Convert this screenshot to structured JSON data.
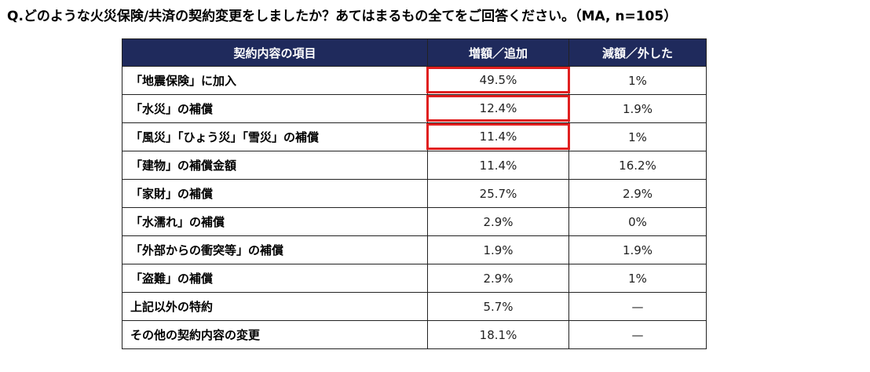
{
  "question": "Q.どのような火災保険/共済の契約変更をしましたか？あてはまるもの全てをご回答ください。（MA, n=105）",
  "colors": {
    "header_bg": "#1f2a5c",
    "header_text": "#ffffff",
    "highlight": "#e02020",
    "border": "#222222"
  },
  "chart_data": {
    "type": "table",
    "columns": [
      "契約内容の項目",
      "増額／追加",
      "減額／外した"
    ],
    "rows": [
      {
        "item": "「地震保険」に加入",
        "increase": "49.5%",
        "decrease": "1%",
        "highlight": true
      },
      {
        "item": "「水災」の補償",
        "increase": "12.4%",
        "decrease": "1.9%",
        "highlight": true
      },
      {
        "item": "「風災」「ひょう災」「雪災」の補償",
        "increase": "11.4%",
        "decrease": "1%",
        "highlight": true
      },
      {
        "item": "「建物」の補償金額",
        "increase": "11.4%",
        "decrease": "16.2%",
        "highlight": false
      },
      {
        "item": "「家財」の補償",
        "increase": "25.7%",
        "decrease": "2.9%",
        "highlight": false
      },
      {
        "item": "「水濡れ」の補償",
        "increase": "2.9%",
        "decrease": "0%",
        "highlight": false
      },
      {
        "item": "「外部からの衝突等」の補償",
        "increase": "1.9%",
        "decrease": "1.9%",
        "highlight": false
      },
      {
        "item": "「盗難」の補償",
        "increase": "2.9%",
        "decrease": "1%",
        "highlight": false
      },
      {
        "item": "上記以外の特約",
        "increase": "5.7%",
        "decrease": "—",
        "highlight": false
      },
      {
        "item": "その他の契約内容の変更",
        "increase": "18.1%",
        "decrease": "—",
        "highlight": false
      }
    ]
  }
}
